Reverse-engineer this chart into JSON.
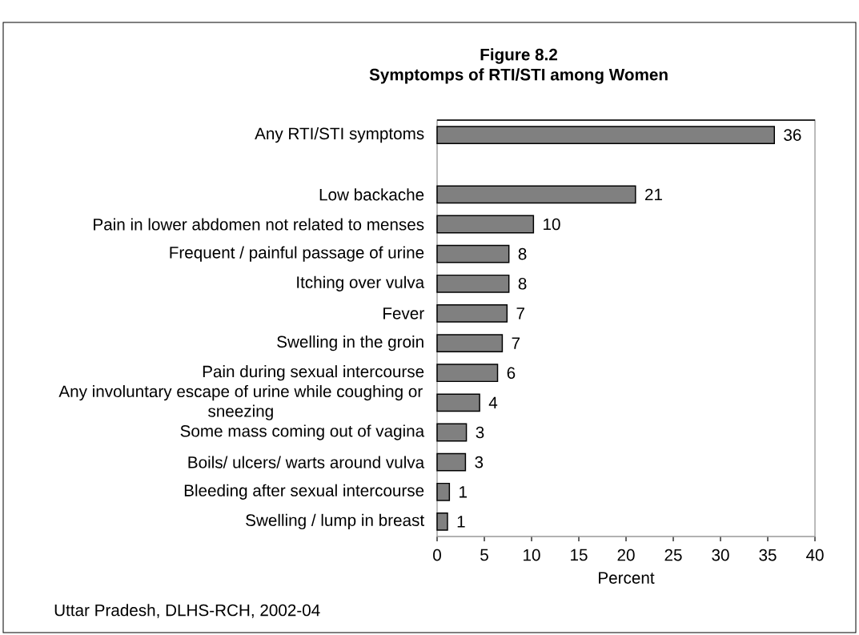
{
  "chart_data": {
    "type": "bar",
    "orientation": "horizontal",
    "title": "Figure 8.2",
    "subtitle": "Symptomps of RTI/STI among Women",
    "xlabel": "Percent",
    "categories": [
      "Any RTI/STI symptoms",
      null,
      "Low backache",
      "Pain in lower abdomen not related to menses",
      "Frequent / painful passage of urine",
      "Itching over vulva",
      "Fever",
      "Swelling in the groin",
      "Pain during sexual intercourse",
      "Any involuntary escape of urine while coughing or sneezing",
      "Some mass coming out of vagina",
      "Boils/ ulcers/ warts around vulva",
      "Bleeding after sexual intercourse",
      "Swelling / lump in breast"
    ],
    "values": [
      35.7,
      null,
      21.0,
      10.2,
      7.6,
      7.6,
      7.4,
      6.9,
      6.4,
      4.5,
      3.1,
      3.0,
      1.3,
      1.1
    ],
    "value_labels": [
      "36",
      null,
      "21",
      "10",
      "8",
      "8",
      "7",
      "7",
      "6",
      "4",
      "3",
      "3",
      "1",
      "1"
    ],
    "color": "#808080",
    "xlim": [
      0,
      40
    ],
    "xticks": [
      0,
      5,
      10,
      15,
      20,
      25,
      30,
      35,
      40
    ],
    "annotations": [
      "Uttar Pradesh, DLHS-RCH, 2002-04"
    ]
  }
}
